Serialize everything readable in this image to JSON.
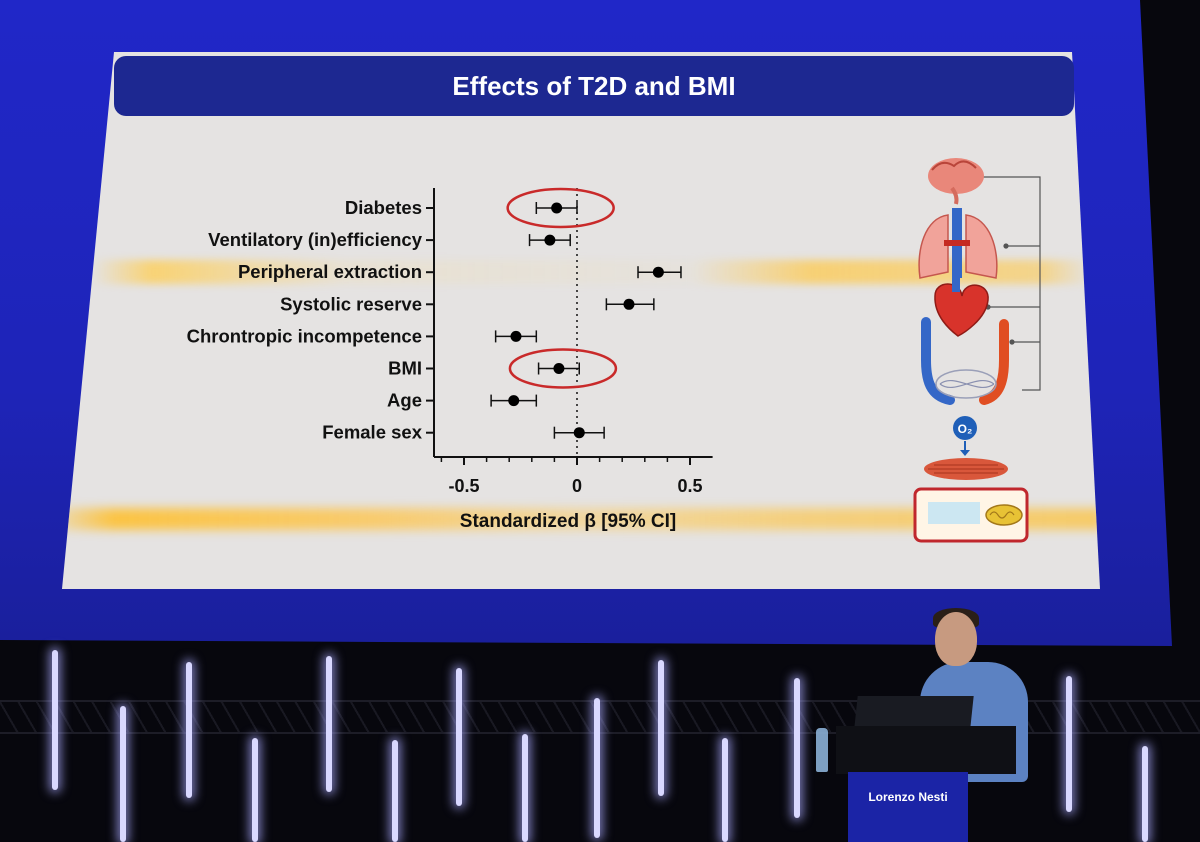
{
  "slide": {
    "title": "Effects of T2D and BMI"
  },
  "chart_data": {
    "type": "forest",
    "title": "Effects of T2D and BMI",
    "xlabel": "Standardized β [95% CI]",
    "xlim": [
      -0.65,
      0.6
    ],
    "xticks": [
      -0.5,
      0,
      0.5
    ],
    "xtick_labels": [
      "-0.5",
      "0",
      "0.5"
    ],
    "reference_line": 0,
    "categories": [
      "Diabetes",
      "Ventilatory (in)efficiency",
      "Peripheral extraction",
      "Systolic reserve",
      "Chrontropic incompetence",
      "BMI",
      "Age",
      "Female sex"
    ],
    "estimates": [
      -0.09,
      -0.12,
      0.36,
      0.23,
      -0.27,
      -0.08,
      -0.28,
      0.01
    ],
    "ci_low": [
      -0.18,
      -0.21,
      0.27,
      0.13,
      -0.36,
      -0.17,
      -0.38,
      -0.1
    ],
    "ci_high": [
      0.0,
      -0.03,
      0.46,
      0.34,
      -0.18,
      0.01,
      -0.18,
      0.12
    ],
    "highlighted": [
      "Diabetes",
      "BMI"
    ],
    "highlight_color": "#c92a2a",
    "point_color": "#000000"
  },
  "stage": {
    "podium_name": "Lorenzo Nesti"
  },
  "icons": [
    "brain-icon",
    "lungs-icon",
    "heart-icon",
    "vessels-icon",
    "oxygen-icon",
    "muscle-icon",
    "mitochondria-icon"
  ],
  "oxygen_label": "O₂"
}
